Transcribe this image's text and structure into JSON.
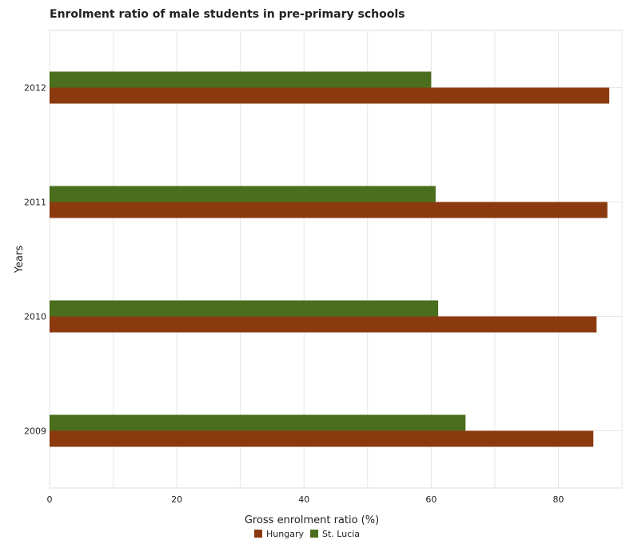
{
  "chart_data": {
    "type": "bar",
    "orientation": "horizontal",
    "title": "Enrolment ratio of male students in pre-primary schools",
    "xlabel": "Gross enrolment ratio (%)",
    "ylabel": "Years",
    "categories": [
      "2009",
      "2010",
      "2011",
      "2012"
    ],
    "series": [
      {
        "name": "Hungary",
        "values": [
          85.5,
          86.0,
          87.7,
          88.0
        ]
      },
      {
        "name": "St. Lucia",
        "values": [
          65.4,
          61.1,
          60.7,
          60.0
        ]
      }
    ],
    "xlim": [
      0,
      90
    ],
    "xticks": [
      0,
      20,
      40,
      60,
      80
    ],
    "grid": true,
    "legend_position": "bottom",
    "colors": {
      "Hungary": "#8b3a0f",
      "St. Lucia": "#4a6e1e"
    }
  }
}
